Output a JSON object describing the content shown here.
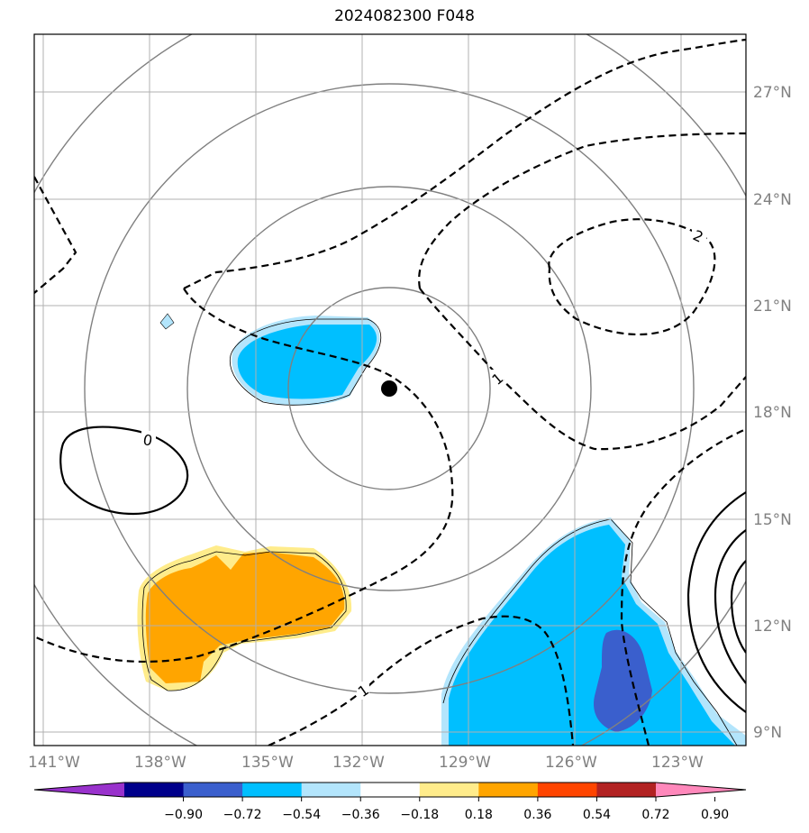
{
  "title": "2024082300 F048",
  "map": {
    "lon_ticks": [
      "141°W",
      "138°W",
      "135°W",
      "132°W",
      "129°W",
      "126°W",
      "123°W"
    ],
    "lat_ticks": [
      "27°N",
      "24°N",
      "21°N",
      "18°N",
      "15°N",
      "12°N",
      "9°N"
    ],
    "storm_center_marker": "black-dot",
    "contour_labels": [
      "0",
      "1",
      "1",
      "2"
    ]
  },
  "colorbar": {
    "colors": [
      "#9932cc",
      "#00008b",
      "#3a5fcd",
      "#00bfff",
      "#b3e5fc",
      "#ffffff",
      "#ffec8b",
      "#ffa500",
      "#ff4500",
      "#b22222",
      "#ff88bb"
    ],
    "ticks": [
      "−0.90",
      "−0.72",
      "−0.54",
      "−0.36",
      "−0.18",
      "0.18",
      "0.36",
      "0.54",
      "0.72",
      "0.90"
    ]
  }
}
